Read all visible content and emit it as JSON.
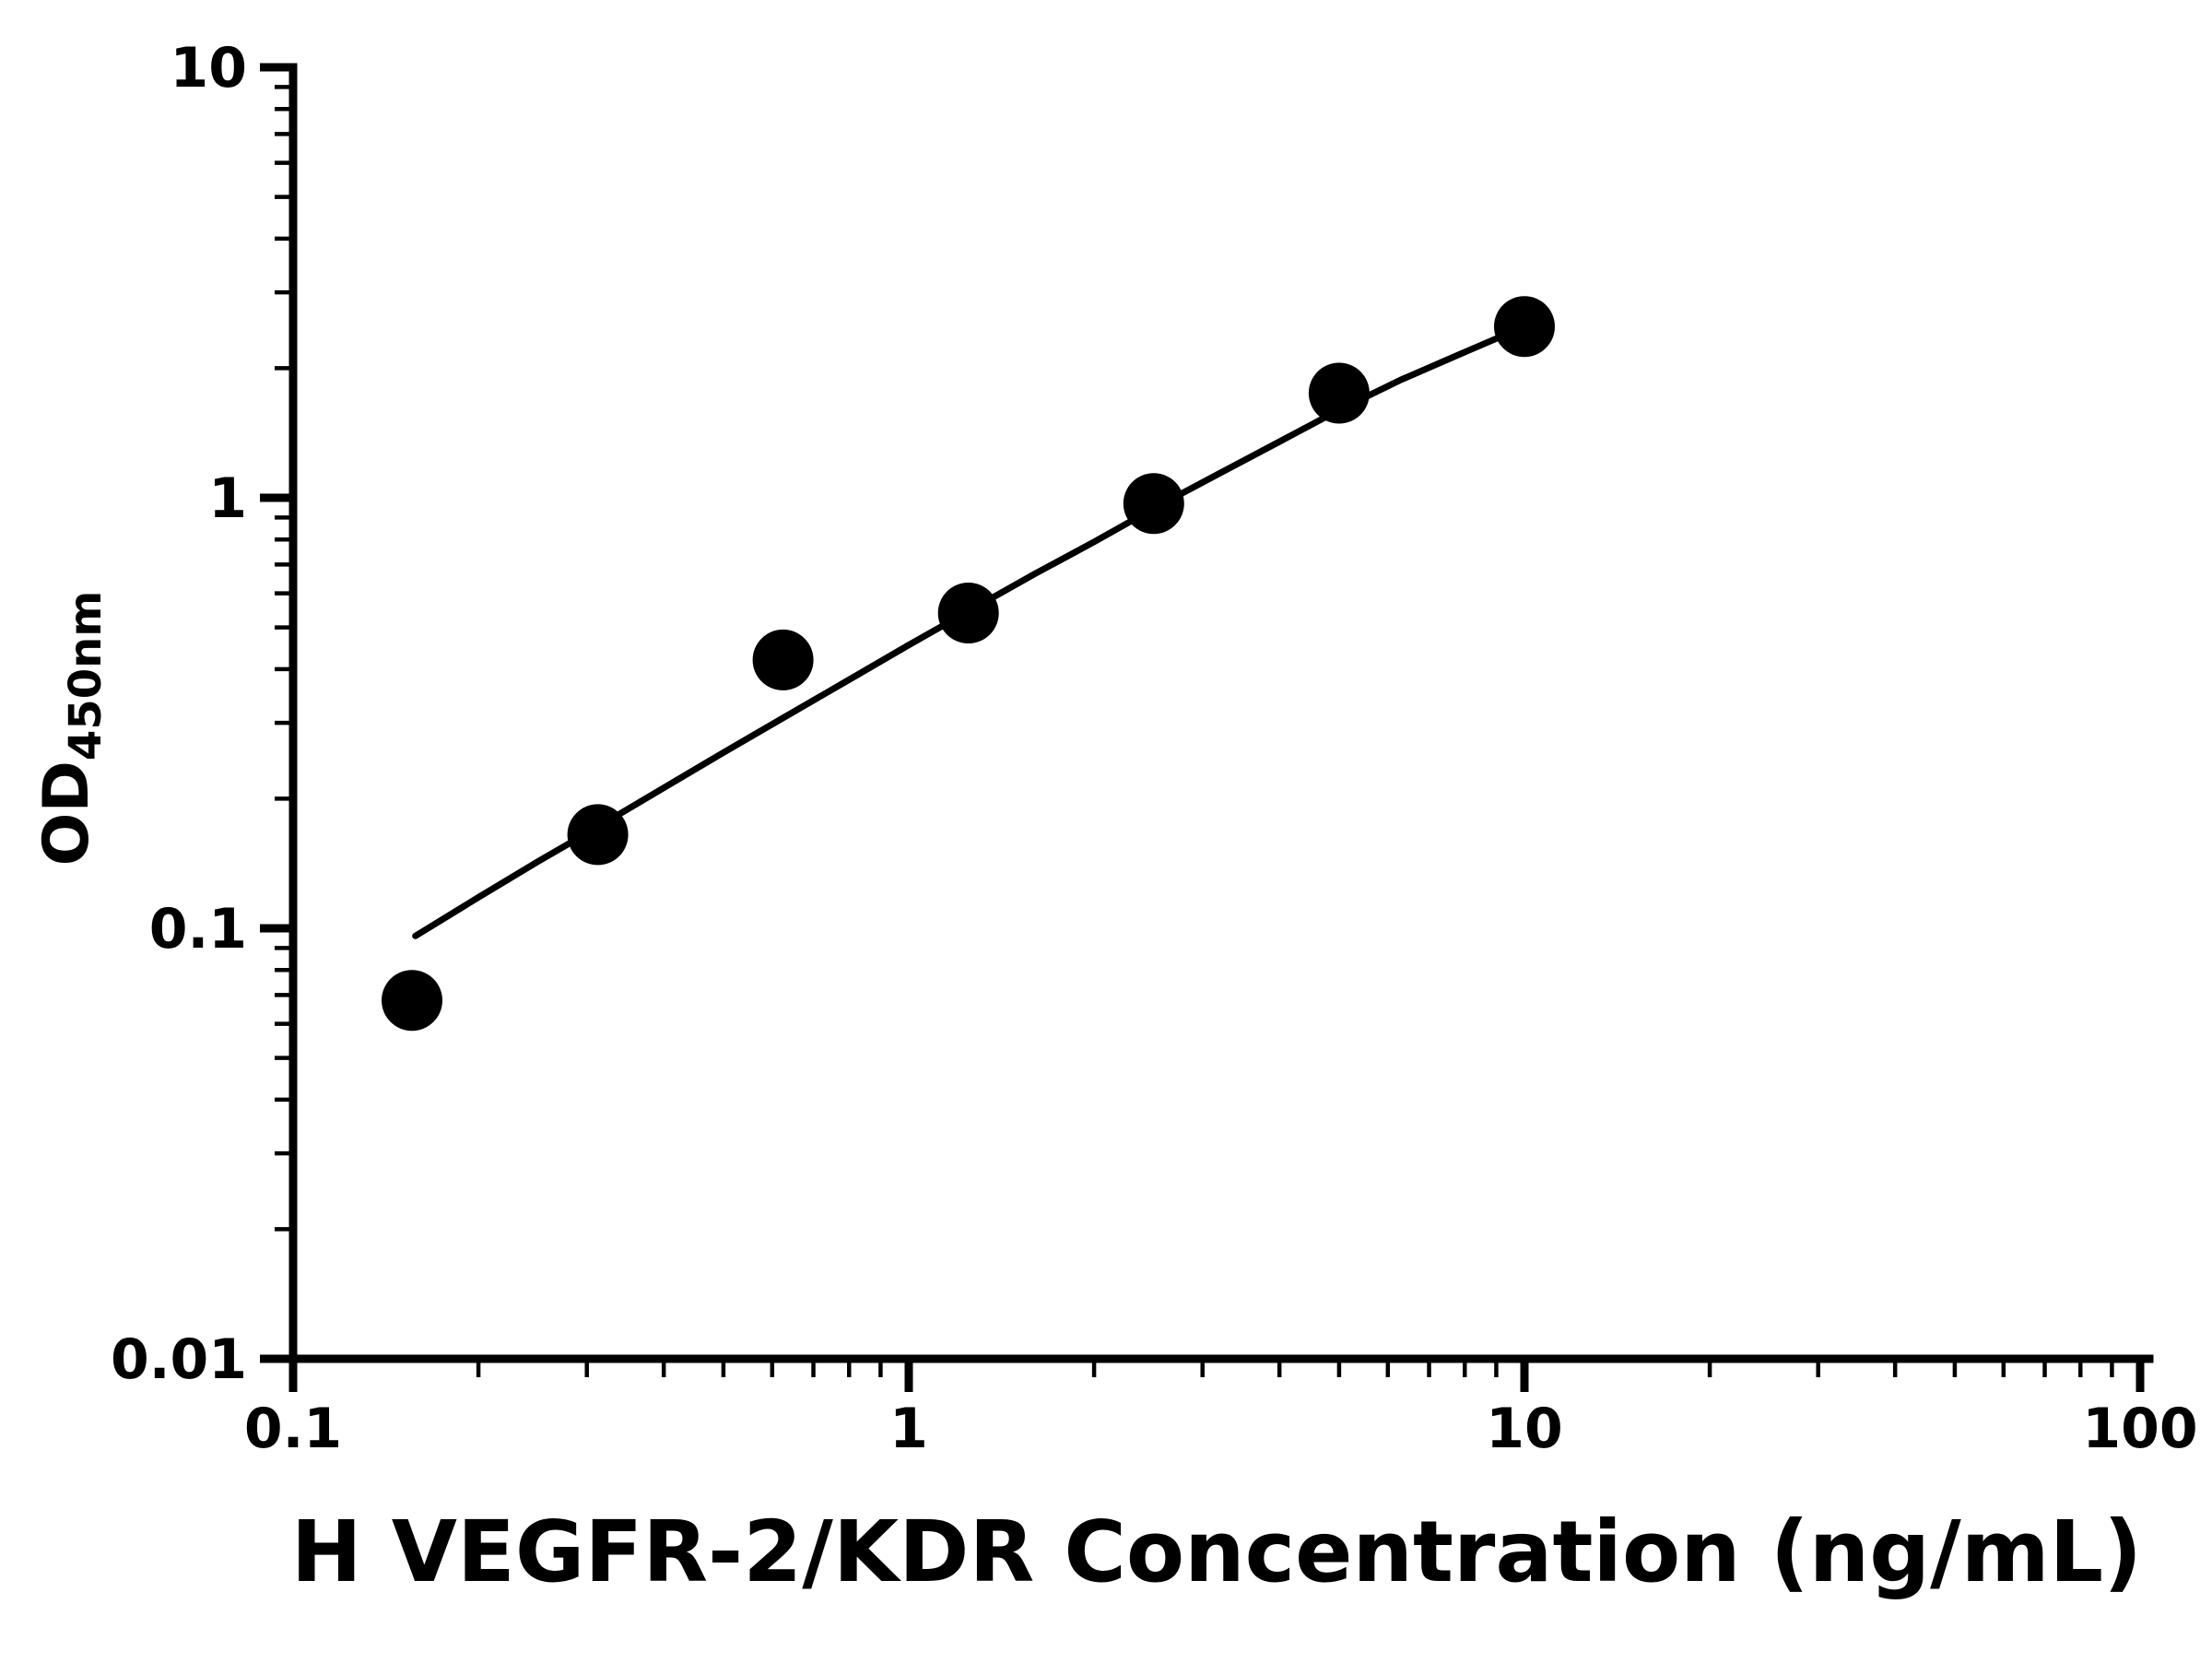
{
  "chart_data": {
    "type": "scatter",
    "title": "",
    "xlabel": "H VEGFR-2/KDR Concentration (ng/mL)",
    "ylabel_main": "OD",
    "ylabel_sub": "450nm",
    "x_scale": "log",
    "y_scale": "log",
    "xlim": [
      0.1,
      100
    ],
    "ylim": [
      0.01,
      10
    ],
    "grid": false,
    "legend": "none",
    "background_color": "#ffffff",
    "axis_color": "#000000",
    "marker_color": "#000000",
    "line_color": "#000000",
    "x_ticks": [
      {
        "value": 0.1,
        "label": "0.1"
      },
      {
        "value": 1,
        "label": "1"
      },
      {
        "value": 10,
        "label": "10"
      },
      {
        "value": 100,
        "label": "100"
      }
    ],
    "y_ticks": [
      {
        "value": 0.01,
        "label": "0.01"
      },
      {
        "value": 0.1,
        "label": "0.1"
      },
      {
        "value": 1,
        "label": "1"
      },
      {
        "value": 10,
        "label": "10"
      }
    ],
    "points": [
      {
        "x": 0.156,
        "y": 0.068
      },
      {
        "x": 0.3125,
        "y": 0.165
      },
      {
        "x": 0.625,
        "y": 0.42
      },
      {
        "x": 1.25,
        "y": 0.54
      },
      {
        "x": 2.5,
        "y": 0.97
      },
      {
        "x": 5,
        "y": 1.75
      },
      {
        "x": 10,
        "y": 2.5
      }
    ],
    "fit_curve": [
      [
        0.158,
        0.096
      ],
      [
        0.2,
        0.118
      ],
      [
        0.25,
        0.143
      ],
      [
        0.3125,
        0.172
      ],
      [
        0.4,
        0.212
      ],
      [
        0.5,
        0.256
      ],
      [
        0.625,
        0.308
      ],
      [
        0.8,
        0.378
      ],
      [
        1.0,
        0.455
      ],
      [
        1.25,
        0.545
      ],
      [
        1.6,
        0.665
      ],
      [
        2.0,
        0.79
      ],
      [
        2.5,
        0.945
      ],
      [
        3.2,
        1.14
      ],
      [
        4.0,
        1.35
      ],
      [
        5.0,
        1.6
      ],
      [
        6.3,
        1.88
      ],
      [
        8.0,
        2.18
      ],
      [
        10.0,
        2.5
      ]
    ]
  }
}
